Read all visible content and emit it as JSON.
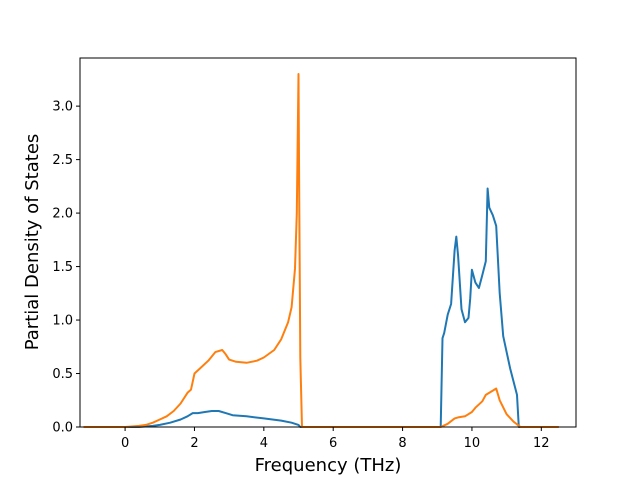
{
  "chart_data": {
    "type": "line",
    "title": "",
    "xlabel": "Frequency (THz)",
    "ylabel": "Partial Density of States",
    "xlim": [
      -1.3,
      13.0
    ],
    "ylim": [
      0.0,
      3.45
    ],
    "xticks": [
      0,
      2,
      4,
      6,
      8,
      10,
      12
    ],
    "xtick_labels": [
      "0",
      "2",
      "4",
      "6",
      "8",
      "10",
      "12"
    ],
    "yticks": [
      0.0,
      0.5,
      1.0,
      1.5,
      2.0,
      2.5,
      3.0
    ],
    "ytick_labels": [
      "0.0",
      "0.5",
      "1.0",
      "1.5",
      "2.0",
      "2.5",
      "3.0"
    ],
    "grid": false,
    "legend": "none",
    "series": [
      {
        "color": "#1f77b4",
        "x": [
          -1.2,
          0.4,
          0.8,
          1.0,
          1.3,
          1.6,
          1.8,
          1.95,
          2.1,
          2.3,
          2.5,
          2.7,
          2.9,
          3.1,
          3.5,
          4.0,
          4.5,
          4.8,
          5.0,
          5.05,
          5.5,
          7.0,
          9.1,
          9.15,
          9.2,
          9.3,
          9.4,
          9.5,
          9.55,
          9.6,
          9.7,
          9.8,
          9.9,
          9.95,
          10.0,
          10.1,
          10.2,
          10.3,
          10.4,
          10.45,
          10.5,
          10.6,
          10.7,
          10.8,
          10.9,
          11.1,
          11.3,
          11.35,
          11.5,
          12.5
        ],
        "y": [
          0.0,
          0.0,
          0.01,
          0.02,
          0.04,
          0.07,
          0.1,
          0.13,
          0.13,
          0.14,
          0.15,
          0.15,
          0.13,
          0.11,
          0.1,
          0.08,
          0.06,
          0.04,
          0.02,
          0.0,
          0.0,
          0.0,
          0.0,
          0.83,
          0.88,
          1.05,
          1.15,
          1.65,
          1.78,
          1.6,
          1.1,
          0.98,
          1.02,
          1.2,
          1.47,
          1.35,
          1.3,
          1.42,
          1.55,
          2.23,
          2.05,
          1.98,
          1.88,
          1.25,
          0.85,
          0.55,
          0.3,
          0.0,
          0.0,
          0.0
        ]
      },
      {
        "color": "#ff7f0e",
        "x": [
          -1.2,
          0.0,
          0.4,
          0.6,
          0.8,
          1.0,
          1.2,
          1.4,
          1.6,
          1.8,
          1.9,
          2.0,
          2.2,
          2.4,
          2.6,
          2.8,
          2.9,
          3.0,
          3.2,
          3.5,
          3.8,
          4.0,
          4.3,
          4.5,
          4.7,
          4.8,
          4.9,
          4.95,
          5.0,
          5.02,
          5.05,
          5.1,
          5.15,
          6.0,
          9.1,
          9.3,
          9.5,
          9.6,
          9.8,
          10.0,
          10.1,
          10.3,
          10.4,
          10.6,
          10.7,
          10.8,
          11.0,
          11.2,
          11.4,
          12.5
        ],
        "y": [
          0.0,
          0.0,
          0.01,
          0.02,
          0.04,
          0.07,
          0.1,
          0.15,
          0.22,
          0.32,
          0.35,
          0.5,
          0.56,
          0.62,
          0.7,
          0.72,
          0.68,
          0.63,
          0.61,
          0.6,
          0.62,
          0.65,
          0.72,
          0.82,
          0.98,
          1.12,
          1.48,
          2.0,
          3.3,
          2.2,
          0.65,
          0.0,
          0.0,
          0.0,
          0.0,
          0.03,
          0.08,
          0.09,
          0.1,
          0.14,
          0.18,
          0.24,
          0.3,
          0.34,
          0.36,
          0.25,
          0.12,
          0.05,
          0.0,
          0.0
        ]
      }
    ]
  }
}
